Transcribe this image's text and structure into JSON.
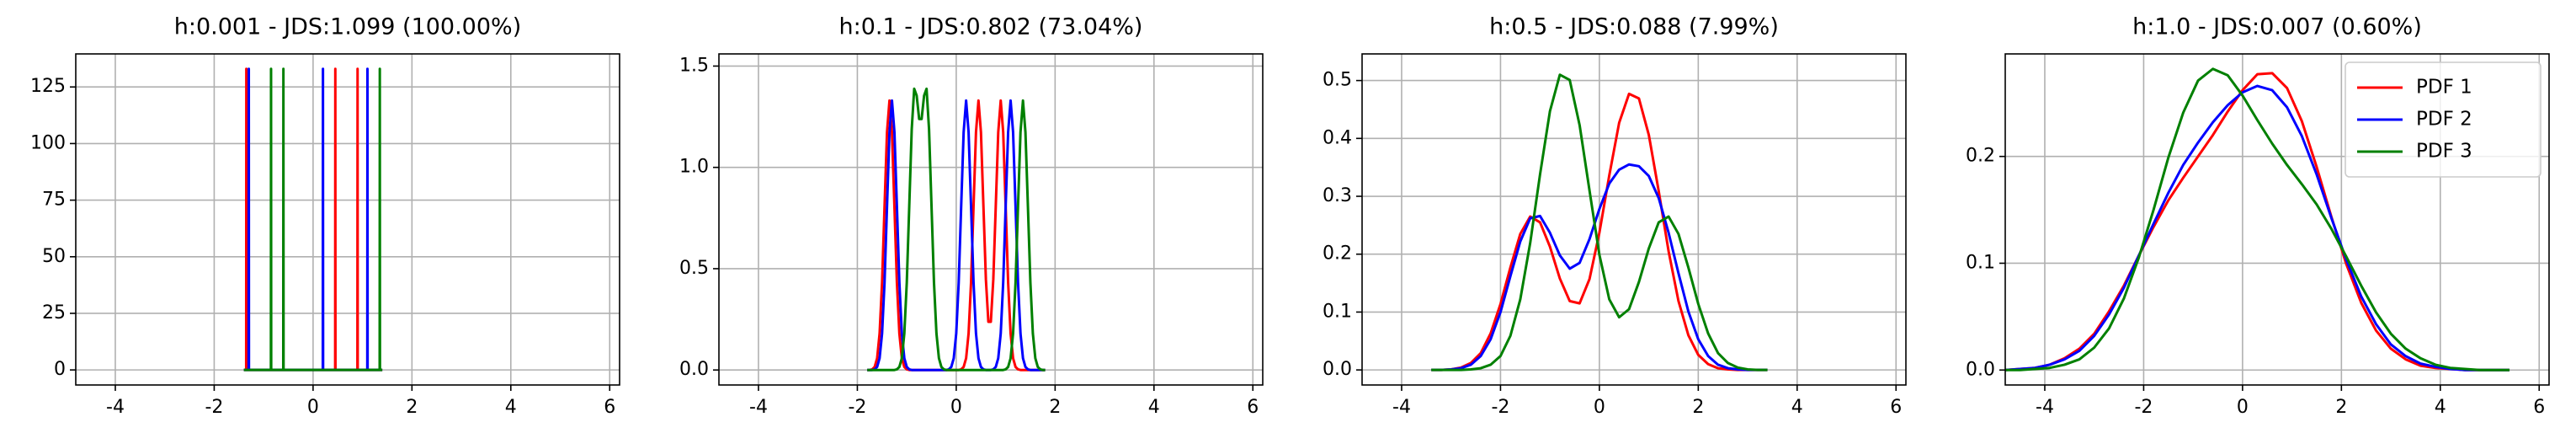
{
  "chart_data": [
    {
      "type": "line",
      "title": "h:0.001 - JDS:1.099 (100.00%)",
      "grid": true,
      "xlim": [
        -4.8,
        6.2
      ],
      "xticks": [
        -4,
        -2,
        0,
        2,
        4,
        6
      ],
      "ylim": [
        -6.65,
        139.6
      ],
      "yticks": [
        0,
        25,
        50,
        75,
        100,
        125
      ],
      "x": [
        -1.4,
        -1.353,
        -1.35,
        -1.347,
        -1.303,
        -1.3,
        -1.297,
        -0.853,
        -0.85,
        -0.847,
        -0.603,
        -0.6,
        -0.597,
        0.197,
        0.2,
        0.203,
        0.447,
        0.45,
        0.453,
        0.897,
        0.9,
        0.903,
        1.097,
        1.1,
        1.103,
        1.347,
        1.35,
        1.353,
        1.4
      ],
      "series": [
        {
          "color": "#ff0000",
          "values": [
            0,
            0,
            133,
            0,
            0,
            0,
            0,
            0,
            0,
            0,
            0,
            0,
            0,
            0,
            0,
            0,
            0,
            133,
            0,
            0,
            133,
            0,
            0,
            0,
            0,
            0,
            0,
            0,
            0
          ]
        },
        {
          "color": "#0000ff",
          "values": [
            0,
            0,
            0,
            0,
            0,
            133,
            0,
            0,
            0,
            0,
            0,
            0,
            0,
            0,
            133,
            0,
            0,
            0,
            0,
            0,
            0,
            0,
            0,
            133,
            0,
            0,
            0,
            0,
            0
          ]
        },
        {
          "color": "#008000",
          "values": [
            0,
            0,
            0,
            0,
            0,
            0,
            0,
            0,
            133,
            0,
            0,
            133,
            0,
            0,
            0,
            0,
            0,
            0,
            0,
            0,
            0,
            0,
            0,
            0,
            0,
            0,
            133,
            0,
            0
          ]
        }
      ]
    },
    {
      "type": "line",
      "title": "h:0.1 - JDS:0.802 (73.04%)",
      "grid": true,
      "xlim": [
        -4.8,
        6.2
      ],
      "xticks": [
        -4,
        -2,
        0,
        2,
        4,
        6
      ],
      "ylim": [
        -0.074,
        1.56
      ],
      "yticks": [
        {
          "value": 0,
          "label": "0.0"
        },
        0.5,
        {
          "value": 1,
          "label": "1.0"
        },
        1.5
      ],
      "x": [
        -1.8,
        -1.75,
        -1.7,
        -1.65,
        -1.6,
        -1.55,
        -1.5,
        -1.45,
        -1.4,
        -1.35,
        -1.3,
        -1.25,
        -1.2,
        -1.15,
        -1.1,
        -1.05,
        -1.0,
        -0.95,
        -0.9,
        -0.85,
        -0.8,
        -0.75,
        -0.7,
        -0.65,
        -0.6,
        -0.55,
        -0.5,
        -0.45,
        -0.4,
        -0.35,
        -0.3,
        -0.25,
        -0.2,
        -0.15,
        -0.1,
        -0.05,
        0,
        0.05,
        0.1,
        0.15,
        0.2,
        0.25,
        0.3,
        0.35,
        0.4,
        0.45,
        0.5,
        0.55,
        0.6,
        0.65,
        0.7,
        0.75,
        0.8,
        0.85,
        0.9,
        0.95,
        1.0,
        1.05,
        1.1,
        1.15,
        1.2,
        1.25,
        1.3,
        1.35,
        1.4,
        1.45,
        1.5,
        1.55,
        1.6,
        1.65,
        1.7,
        1.75,
        1.8
      ],
      "series": [
        {
          "color": "#ff0000",
          "values": [
            0,
            0,
            0.003,
            0.015,
            0.058,
            0.18,
            0.432,
            0.807,
            1.174,
            1.33,
            1.174,
            0.807,
            0.432,
            0.18,
            0.058,
            0.015,
            0.003,
            0,
            0,
            0,
            0,
            0,
            0,
            0,
            0,
            0,
            0,
            0,
            0,
            0,
            0,
            0,
            0,
            0,
            0,
            0,
            0,
            0,
            0.003,
            0.015,
            0.058,
            0.18,
            0.432,
            0.807,
            1.174,
            1.33,
            1.174,
            0.81,
            0.447,
            0.238,
            0.238,
            0.447,
            0.81,
            1.174,
            1.33,
            1.174,
            0.807,
            0.432,
            0.18,
            0.058,
            0.015,
            0.003,
            0,
            0,
            0,
            0,
            0,
            0,
            0,
            0,
            0,
            0,
            0
          ]
        },
        {
          "color": "#0000ff",
          "values": [
            0,
            0,
            0,
            0.003,
            0.015,
            0.058,
            0.18,
            0.432,
            0.807,
            1.174,
            1.33,
            1.174,
            0.807,
            0.432,
            0.18,
            0.058,
            0.015,
            0.003,
            0,
            0,
            0,
            0,
            0,
            0,
            0,
            0,
            0,
            0,
            0,
            0,
            0,
            0,
            0,
            0.003,
            0.015,
            0.058,
            0.18,
            0.432,
            0.807,
            1.174,
            1.33,
            1.174,
            0.807,
            0.432,
            0.18,
            0.058,
            0.015,
            0.003,
            0,
            0,
            0,
            0.003,
            0.015,
            0.058,
            0.18,
            0.432,
            0.807,
            1.174,
            1.33,
            1.174,
            0.807,
            0.432,
            0.18,
            0.058,
            0.015,
            0.003,
            0,
            0,
            0,
            0,
            0,
            0,
            0
          ]
        },
        {
          "color": "#008000",
          "values": [
            0,
            0,
            0,
            0,
            0,
            0,
            0,
            0,
            0,
            0,
            0,
            0,
            0.003,
            0.015,
            0.058,
            0.18,
            0.432,
            0.81,
            1.189,
            1.388,
            1.354,
            1.239,
            1.239,
            1.354,
            1.388,
            1.189,
            0.81,
            0.432,
            0.18,
            0.058,
            0.015,
            0.003,
            0,
            0,
            0,
            0,
            0,
            0,
            0,
            0,
            0,
            0,
            0,
            0,
            0,
            0,
            0,
            0,
            0,
            0,
            0,
            0,
            0,
            0,
            0,
            0,
            0.003,
            0.015,
            0.058,
            0.18,
            0.432,
            0.807,
            1.174,
            1.33,
            1.174,
            0.807,
            0.432,
            0.18,
            0.058,
            0.015,
            0.003,
            0,
            0
          ]
        }
      ]
    },
    {
      "type": "line",
      "title": "h:0.5 - JDS:0.088 (7.99%)",
      "grid": true,
      "xlim": [
        -4.8,
        6.2
      ],
      "xticks": [
        -4,
        -2,
        0,
        2,
        4,
        6
      ],
      "ylim": [
        -0.026,
        0.546
      ],
      "yticks": [
        {
          "value": 0,
          "label": "0.0"
        },
        0.1,
        0.2,
        0.3,
        0.4,
        0.5
      ],
      "x": [
        -3.4,
        -3.2,
        -3.0,
        -2.8,
        -2.6,
        -2.4,
        -2.2,
        -2.0,
        -1.8,
        -1.6,
        -1.4,
        -1.2,
        -1.0,
        -0.8,
        -0.6,
        -0.4,
        -0.2,
        0,
        0.2,
        0.4,
        0.6,
        0.8,
        1.0,
        1.2,
        1.4,
        1.6,
        1.8,
        2.0,
        2.2,
        2.4,
        2.6,
        2.8,
        3.0,
        3.2,
        3.4
      ],
      "series": [
        {
          "color": "#ff0000",
          "values": [
            0,
            0,
            0.001,
            0.004,
            0.012,
            0.029,
            0.063,
            0.114,
            0.177,
            0.235,
            0.265,
            0.255,
            0.213,
            0.158,
            0.119,
            0.115,
            0.157,
            0.237,
            0.336,
            0.427,
            0.477,
            0.469,
            0.406,
            0.309,
            0.205,
            0.119,
            0.06,
            0.026,
            0.01,
            0.003,
            0.001,
            0,
            0,
            0,
            0
          ]
        },
        {
          "color": "#0000ff",
          "values": [
            0,
            0,
            0.001,
            0.003,
            0.009,
            0.024,
            0.053,
            0.1,
            0.162,
            0.222,
            0.262,
            0.266,
            0.237,
            0.198,
            0.175,
            0.185,
            0.226,
            0.278,
            0.322,
            0.346,
            0.355,
            0.352,
            0.335,
            0.297,
            0.237,
            0.167,
            0.101,
            0.053,
            0.024,
            0.009,
            0.003,
            0.001,
            0,
            0,
            0
          ]
        },
        {
          "color": "#008000",
          "values": [
            0,
            0,
            0,
            0,
            0.001,
            0.003,
            0.009,
            0.024,
            0.059,
            0.122,
            0.219,
            0.338,
            0.447,
            0.51,
            0.501,
            0.423,
            0.31,
            0.199,
            0.122,
            0.091,
            0.105,
            0.152,
            0.21,
            0.255,
            0.265,
            0.235,
            0.177,
            0.114,
            0.063,
            0.029,
            0.012,
            0.004,
            0.001,
            0,
            0
          ]
        }
      ]
    },
    {
      "type": "line",
      "title": "h:1.0 - JDS:0.007 (0.60%)",
      "grid": true,
      "legend": "upper right",
      "xlim": [
        -4.8,
        6.2
      ],
      "xticks": [
        -4,
        -2,
        0,
        2,
        4,
        6
      ],
      "ylim": [
        -0.014,
        0.296
      ],
      "yticks": [
        {
          "value": 0,
          "label": "0.0"
        },
        0.1,
        0.2
      ],
      "x": [
        -4.8,
        -4.5,
        -4.2,
        -3.9,
        -3.6,
        -3.3,
        -3.0,
        -2.7,
        -2.4,
        -2.1,
        -1.8,
        -1.5,
        -1.2,
        -0.9,
        -0.6,
        -0.3,
        0,
        0.3,
        0.6,
        0.9,
        1.2,
        1.5,
        1.8,
        2.1,
        2.4,
        2.7,
        3.0,
        3.3,
        3.6,
        3.9,
        4.2,
        4.5,
        4.8,
        5.1,
        5.4
      ],
      "series": [
        {
          "name": "PDF 1",
          "color": "#ff0000",
          "values": [
            0,
            0.001,
            0.002,
            0.005,
            0.011,
            0.02,
            0.034,
            0.055,
            0.079,
            0.107,
            0.134,
            0.159,
            0.18,
            0.2,
            0.22,
            0.242,
            0.262,
            0.277,
            0.278,
            0.264,
            0.233,
            0.19,
            0.143,
            0.099,
            0.063,
            0.037,
            0.02,
            0.01,
            0.004,
            0.002,
            0.001,
            0,
            0,
            0,
            0
          ]
        },
        {
          "name": "PDF 2",
          "color": "#0000ff",
          "values": [
            0,
            0.001,
            0.002,
            0.005,
            0.01,
            0.018,
            0.032,
            0.052,
            0.077,
            0.107,
            0.137,
            0.166,
            0.192,
            0.213,
            0.232,
            0.248,
            0.26,
            0.266,
            0.262,
            0.246,
            0.219,
            0.183,
            0.142,
            0.103,
            0.069,
            0.043,
            0.024,
            0.013,
            0.006,
            0.003,
            0.001,
            0,
            0,
            0,
            0
          ]
        },
        {
          "name": "PDF 3",
          "color": "#008000",
          "values": [
            0,
            0,
            0.001,
            0.002,
            0.005,
            0.01,
            0.021,
            0.039,
            0.067,
            0.105,
            0.15,
            0.199,
            0.241,
            0.271,
            0.282,
            0.276,
            0.257,
            0.234,
            0.212,
            0.192,
            0.174,
            0.155,
            0.132,
            0.106,
            0.079,
            0.054,
            0.034,
            0.02,
            0.011,
            0.005,
            0.002,
            0.001,
            0,
            0,
            0
          ]
        }
      ]
    }
  ]
}
